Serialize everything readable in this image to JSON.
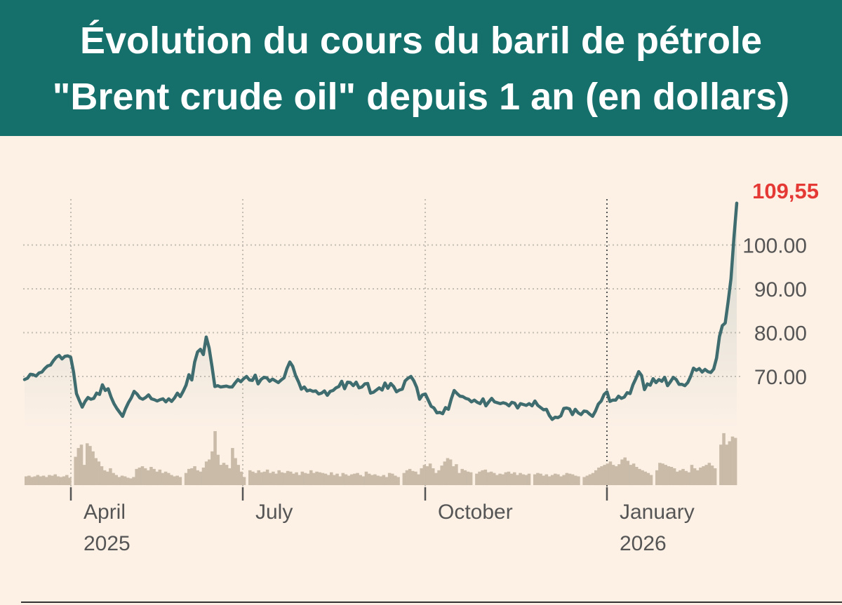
{
  "header": {
    "title_line1": "Évolution du cours du baril de pétrole",
    "title_line2": "\"Brent crude oil\" depuis 1 an (en dollars)"
  },
  "colors": {
    "header_bg": "#156f6b",
    "background": "#fdf1e6",
    "line": "#3e6c6f",
    "volume": "#c9bba8",
    "last_value": "#e53935"
  },
  "chart_data": {
    "type": "line",
    "title": "Évolution du cours du baril de pétrole \"Brent crude oil\" depuis 1 an (en dollars)",
    "y_ticks": [
      "70.00",
      "80.00",
      "90.00",
      "100.00"
    ],
    "x_ticks": [
      {
        "line1": "April",
        "line2": "2025"
      },
      {
        "line1": "July",
        "line2": ""
      },
      {
        "line1": "October",
        "line2": ""
      },
      {
        "line1": "January",
        "line2": "2026"
      }
    ],
    "last_value_label": "109,55",
    "ylim": [
      60,
      112
    ],
    "grid": "dotted",
    "x_axis": "dates 2025-03 to 2026-03",
    "series": [
      {
        "values": [
          69.3,
          69.6,
          70.5,
          70.4,
          70.1,
          70.8,
          71.0,
          71.8,
          72.4,
          72.6,
          73.6,
          74.4,
          74.8,
          74.0,
          74.6,
          74.7,
          74.4,
          71.0,
          66.1,
          64.5,
          63.0,
          64.3,
          65.2,
          64.8,
          65.0,
          66.2,
          65.9,
          68.1,
          66.8,
          67.2,
          65.3,
          63.8,
          62.7,
          61.8,
          60.9,
          62.6,
          64.0,
          65.1,
          66.6,
          66.0,
          65.1,
          64.8,
          65.2,
          65.8,
          64.9,
          64.7,
          64.4,
          64.7,
          64.9,
          64.2,
          64.9,
          64.3,
          65.1,
          66.2,
          65.4,
          66.6,
          68.0,
          70.4,
          69.2,
          73.3,
          75.6,
          76.2,
          75.0,
          79.0,
          76.5,
          72.3,
          67.7,
          67.9,
          67.6,
          67.7,
          67.8,
          67.6,
          67.6,
          68.5,
          69.3,
          68.8,
          69.5,
          70.0,
          69.2,
          69.1,
          70.3,
          68.3,
          69.3,
          69.8,
          69.7,
          68.9,
          69.4,
          69.0,
          68.6,
          69.2,
          69.7,
          71.8,
          73.3,
          72.3,
          70.2,
          68.8,
          67.1,
          67.6,
          66.7,
          66.9,
          66.6,
          66.7,
          66.0,
          66.2,
          66.7,
          65.7,
          66.6,
          66.8,
          67.4,
          67.7,
          68.9,
          67.2,
          68.7,
          68.6,
          67.9,
          68.7,
          67.4,
          67.6,
          68.3,
          68.4,
          66.2,
          66.4,
          66.9,
          67.4,
          66.9,
          68.5,
          67.3,
          68.4,
          67.7,
          66.5,
          66.9,
          67.1,
          69.0,
          69.6,
          70.0,
          69.0,
          67.5,
          64.8,
          65.8,
          66.0,
          64.6,
          63.2,
          62.8,
          61.7,
          61.8,
          61.5,
          62.9,
          62.5,
          64.9,
          66.8,
          66.1,
          65.5,
          65.4,
          65.0,
          64.8,
          64.2,
          64.6,
          64.1,
          63.8,
          64.9,
          63.3,
          64.2,
          65.0,
          64.2,
          64.0,
          63.8,
          64.0,
          63.8,
          63.3,
          64.1,
          63.9,
          62.8,
          63.8,
          63.6,
          63.4,
          63.8,
          63.3,
          64.4,
          63.4,
          62.9,
          62.4,
          62.5,
          61.1,
          60.2,
          60.7,
          60.6,
          61.0,
          62.7,
          62.8,
          62.6,
          61.3,
          62.5,
          61.7,
          61.3,
          62.1,
          62.0,
          61.4,
          60.9,
          62.1,
          63.7,
          64.4,
          65.9,
          66.5,
          64.3,
          64.6,
          64.6,
          65.5,
          65.0,
          65.3,
          66.3,
          66.1,
          68.1,
          69.5,
          71.1,
          70.2,
          67.0,
          68.3,
          68.0,
          69.5,
          68.6,
          69.3,
          68.9,
          69.8,
          67.9,
          68.8,
          69.8,
          69.3,
          68.2,
          68.2,
          67.9,
          68.6,
          70.0,
          71.9,
          71.4,
          71.8,
          71.0,
          71.6,
          71.1,
          70.9,
          71.7,
          74.2,
          79.1,
          81.6,
          82.2,
          87.0,
          92.3,
          101.5,
          109.55
        ]
      }
    ],
    "volume": [
      13,
      14,
      12,
      13,
      15,
      13,
      14,
      12,
      15,
      14,
      16,
      13,
      12,
      13,
      15,
      11,
      0,
      42,
      55,
      60,
      30,
      62,
      58,
      50,
      40,
      35,
      28,
      22,
      20,
      25,
      18,
      15,
      12,
      14,
      13,
      11,
      10,
      12,
      24,
      26,
      28,
      25,
      22,
      27,
      24,
      20,
      23,
      18,
      20,
      18,
      15,
      13,
      14,
      12,
      0,
      18,
      24,
      25,
      28,
      22,
      20,
      26,
      35,
      38,
      50,
      80,
      45,
      30,
      33,
      30,
      25,
      55,
      40,
      30,
      20,
      12,
      0,
      22,
      20,
      18,
      22,
      19,
      20,
      23,
      18,
      20,
      17,
      22,
      19,
      18,
      21,
      20,
      17,
      19,
      15,
      20,
      18,
      17,
      22,
      18,
      20,
      19,
      18,
      17,
      15,
      19,
      15,
      17,
      13,
      18,
      16,
      14,
      16,
      17,
      18,
      15,
      13,
      20,
      17,
      15,
      16,
      14,
      13,
      15,
      12,
      18,
      17,
      14,
      12,
      0,
      18,
      22,
      24,
      21,
      20,
      16,
      25,
      30,
      28,
      32,
      25,
      18,
      22,
      29,
      35,
      40,
      38,
      28,
      31,
      18,
      24,
      22,
      20,
      19,
      0,
      17,
      20,
      22,
      23,
      19,
      20,
      18,
      15,
      17,
      16,
      19,
      20,
      17,
      19,
      15,
      18,
      16,
      15,
      17,
      0,
      16,
      18,
      17,
      14,
      16,
      13,
      15,
      17,
      16,
      13,
      15,
      18,
      17,
      16,
      14,
      13,
      0,
      12,
      14,
      16,
      18,
      22,
      26,
      28,
      30,
      32,
      35,
      30,
      28,
      31,
      38,
      41,
      36,
      30,
      32,
      27,
      24,
      22,
      20,
      18,
      15,
      0,
      22,
      33,
      32,
      30,
      28,
      27,
      25,
      20,
      22,
      24,
      21,
      19,
      30,
      25,
      22,
      26,
      28,
      30,
      33,
      29,
      25,
      0,
      60,
      77,
      60,
      65,
      72,
      70
    ]
  }
}
